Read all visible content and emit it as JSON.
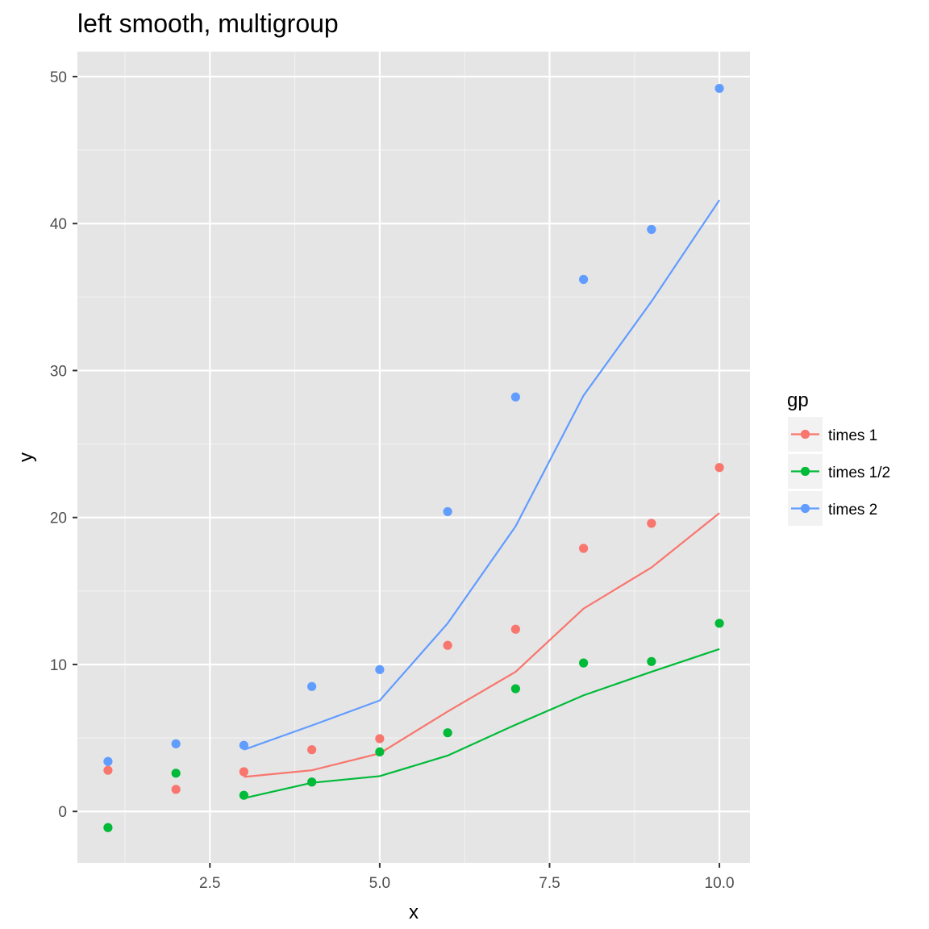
{
  "chart_data": {
    "type": "scatter",
    "title": "left smooth, multigroup",
    "xlabel": "x",
    "ylabel": "y",
    "xlim": [
      0.55,
      10.45
    ],
    "ylim": [
      -3.5,
      51.7
    ],
    "x_ticks": [
      2.5,
      5.0,
      7.5,
      10.0
    ],
    "x_tick_labels": [
      "2.5",
      "5.0",
      "7.5",
      "10.0"
    ],
    "x_minor_ticks": [
      1.25,
      3.75,
      6.25,
      8.75
    ],
    "y_ticks": [
      0,
      10,
      20,
      30,
      40,
      50
    ],
    "y_tick_labels": [
      "0",
      "10",
      "20",
      "30",
      "40",
      "50"
    ],
    "y_minor_ticks": [
      5,
      15,
      25,
      35,
      45
    ],
    "grid": true,
    "background": "#e5e5e5",
    "legend": {
      "title": "gp",
      "position": "right"
    },
    "series": [
      {
        "name": "times 1",
        "color": "#f8766d",
        "points": [
          [
            1,
            2.8
          ],
          [
            2,
            1.5
          ],
          [
            3,
            2.7
          ],
          [
            4,
            4.2
          ],
          [
            5,
            4.95
          ],
          [
            6,
            11.3
          ],
          [
            7,
            12.4
          ],
          [
            8,
            17.9
          ],
          [
            9,
            19.6
          ],
          [
            10,
            23.4
          ]
        ],
        "smooth": [
          [
            3,
            2.35
          ],
          [
            4,
            2.8
          ],
          [
            5,
            3.95
          ],
          [
            6,
            6.8
          ],
          [
            7,
            9.5
          ],
          [
            8,
            13.8
          ],
          [
            9,
            16.6
          ],
          [
            10,
            20.3
          ]
        ]
      },
      {
        "name": "times 1/2",
        "color": "#00ba38",
        "points": [
          [
            1,
            -1.1
          ],
          [
            2,
            2.6
          ],
          [
            3,
            1.1
          ],
          [
            4,
            2.0
          ],
          [
            5,
            4.05
          ],
          [
            6,
            5.35
          ],
          [
            7,
            8.35
          ],
          [
            8,
            10.1
          ],
          [
            9,
            10.2
          ],
          [
            10,
            12.8
          ]
        ],
        "smooth": [
          [
            3,
            0.9
          ],
          [
            4,
            1.95
          ],
          [
            5,
            2.4
          ],
          [
            6,
            3.8
          ],
          [
            7,
            5.9
          ],
          [
            8,
            7.9
          ],
          [
            9,
            9.5
          ],
          [
            10,
            11.05
          ]
        ]
      },
      {
        "name": "times 2",
        "color": "#619cff",
        "points": [
          [
            1,
            3.4
          ],
          [
            2,
            4.6
          ],
          [
            3,
            4.5
          ],
          [
            4,
            8.5
          ],
          [
            5,
            9.65
          ],
          [
            6,
            20.4
          ],
          [
            7,
            28.2
          ],
          [
            8,
            36.2
          ],
          [
            9,
            39.6
          ],
          [
            10,
            49.2
          ]
        ],
        "smooth": [
          [
            3,
            4.2
          ],
          [
            4,
            5.85
          ],
          [
            5,
            7.55
          ],
          [
            6,
            12.8
          ],
          [
            7,
            19.4
          ],
          [
            8,
            28.3
          ],
          [
            9,
            34.7
          ],
          [
            10,
            41.6
          ]
        ]
      }
    ]
  }
}
